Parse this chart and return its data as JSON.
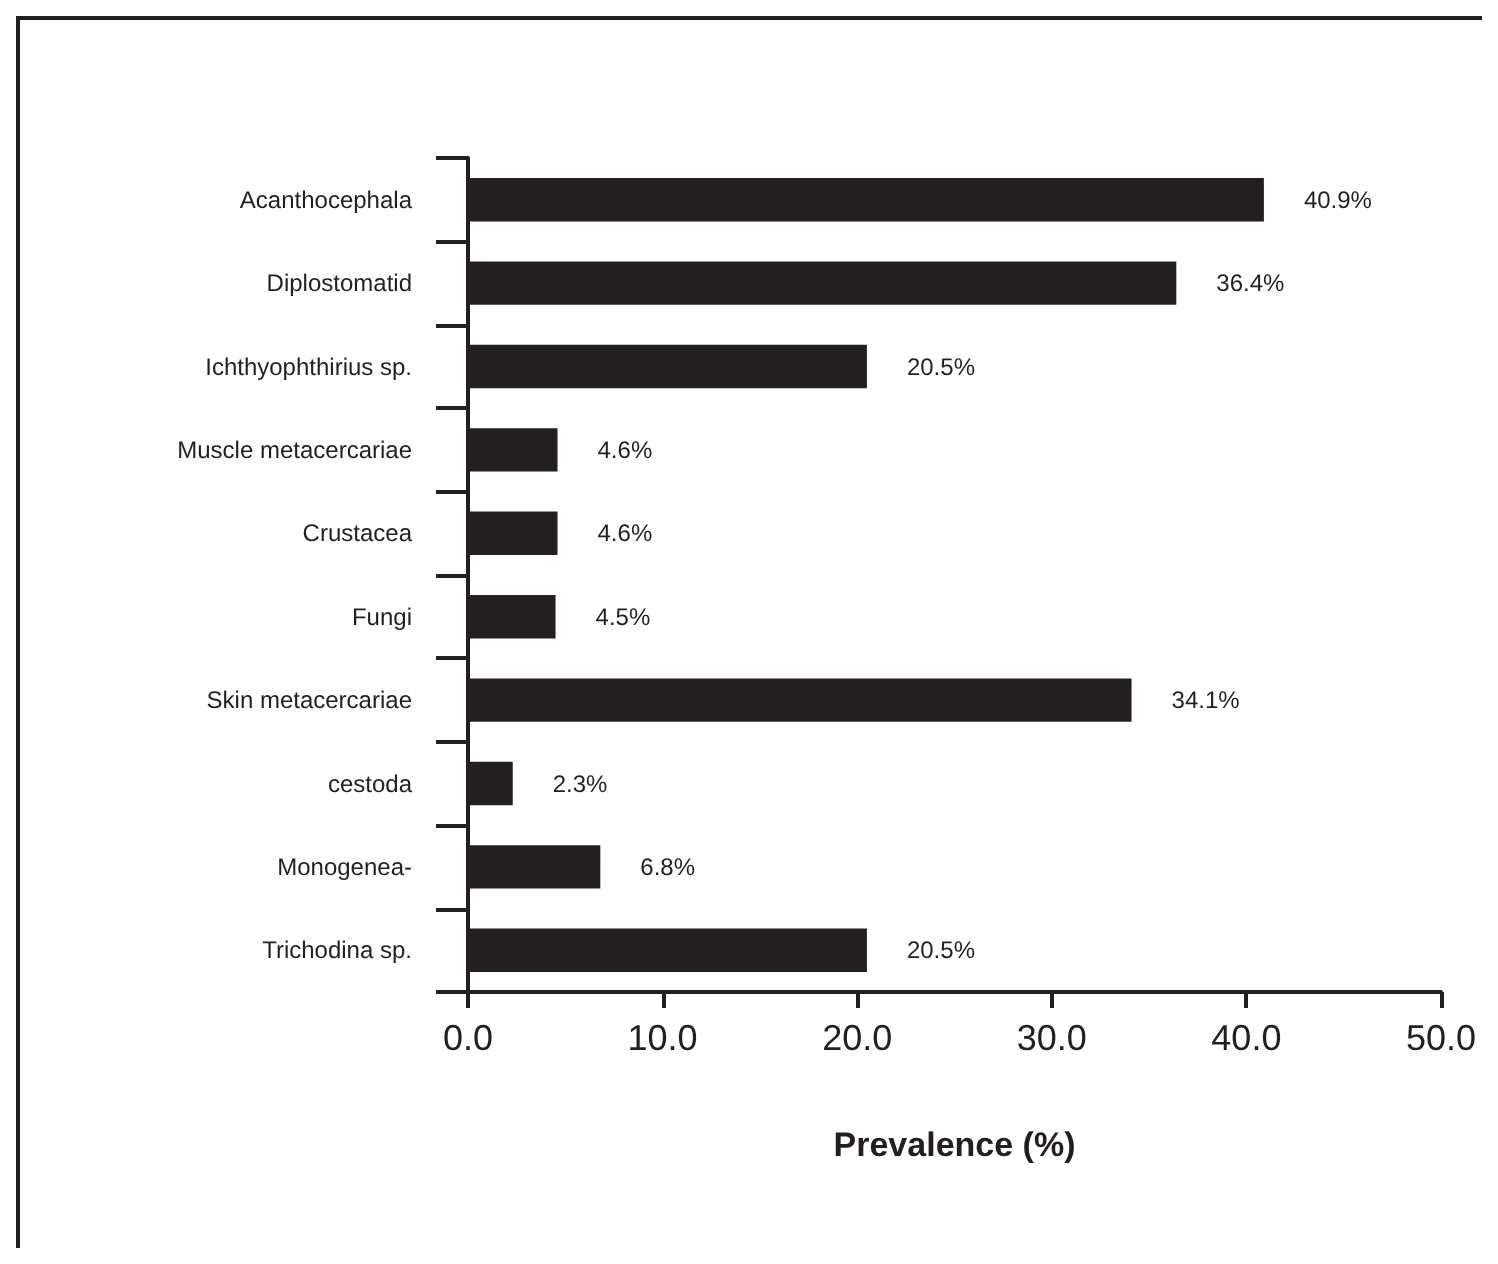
{
  "chart_data": {
    "type": "bar",
    "orientation": "horizontal",
    "xlabel": "Prevalence (%)",
    "categories": [
      "Acanthocephala",
      "Diplostomatid",
      "Ichthyophthirius sp.",
      "Muscle metacercariae",
      "Crustacea",
      "Fungi",
      "Skin metacercariae",
      "cestoda",
      "Monogenea-",
      "Trichodina sp."
    ],
    "values": [
      40.9,
      36.4,
      20.5,
      4.6,
      4.6,
      4.5,
      34.1,
      2.3,
      6.8,
      20.5
    ],
    "value_labels": [
      "40.9%",
      "36.4%",
      "20.5%",
      "4.6%",
      "4.6%",
      "4.5%",
      "34.1%",
      "2.3%",
      "6.8%",
      "20.5%"
    ],
    "color": "#231f20",
    "xlim": [
      0,
      50
    ],
    "xticks": [
      {
        "value": 0,
        "label": "0.0"
      },
      {
        "value": 10,
        "label": "10.0"
      },
      {
        "value": 20,
        "label": "20.0"
      },
      {
        "value": 30,
        "label": "30.0"
      },
      {
        "value": 40,
        "label": "40.0"
      },
      {
        "value": 50,
        "label": "50.0"
      }
    ],
    "grid": false
  }
}
